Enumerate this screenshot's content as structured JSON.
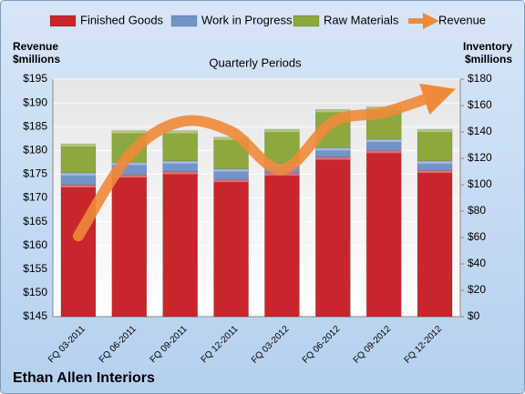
{
  "chart_data": {
    "type": "bar",
    "title": "Quarterly Periods",
    "footer": "Ethan Allen Interiors",
    "y_label": [
      "Revenue",
      "$millions"
    ],
    "y2_label": [
      "Inventory",
      "$millions"
    ],
    "categories": [
      "FQ 03-2011",
      "FQ 06-2011",
      "FQ 09-2011",
      "FQ 12-2011",
      "FQ 03-2012",
      "FQ 06-2012",
      "FQ 09-2012",
      "FQ 12-2012"
    ],
    "stacked": true,
    "grid": true,
    "legend": "top",
    "series": [
      {
        "name": "Finished Goods",
        "color": "#c8252c",
        "axis": "y2",
        "values": [
          100,
          107.5,
          110,
          104,
          109,
          121,
          126,
          111
        ]
      },
      {
        "name": "Work in Progress",
        "color": "#7393c9",
        "axis": "y2",
        "values": [
          9,
          9.5,
          8,
          8,
          7,
          7,
          8.5,
          7
        ]
      },
      {
        "name": "Raw Materials",
        "color": "#8ca83e",
        "axis": "y2",
        "values": [
          22,
          24,
          23,
          24,
          26,
          29,
          24.5,
          24
        ]
      },
      {
        "name": "Revenue",
        "color": "#ef8a3a",
        "type": "line",
        "axis": "y",
        "values": [
          162,
          179,
          186,
          184,
          176,
          186,
          188,
          191.5
        ]
      }
    ],
    "ylim": [
      145,
      195
    ],
    "yticks": [
      {
        "value": 145,
        "label": "$145"
      },
      {
        "value": 150,
        "label": "$150"
      },
      {
        "value": 155,
        "label": "$155"
      },
      {
        "value": 160,
        "label": "$160"
      },
      {
        "value": 165,
        "label": "$165"
      },
      {
        "value": 170,
        "label": "$170"
      },
      {
        "value": 175,
        "label": "$175"
      },
      {
        "value": 180,
        "label": "$180"
      },
      {
        "value": 185,
        "label": "$185"
      },
      {
        "value": 190,
        "label": "$190"
      },
      {
        "value": 195,
        "label": "$195"
      }
    ],
    "y2lim": [
      0,
      180
    ],
    "y2ticks": [
      {
        "value": 0,
        "label": "$0"
      },
      {
        "value": 20,
        "label": "$20"
      },
      {
        "value": 40,
        "label": "$40"
      },
      {
        "value": 60,
        "label": "$60"
      },
      {
        "value": 80,
        "label": "$80"
      },
      {
        "value": 100,
        "label": "$100"
      },
      {
        "value": 120,
        "label": "$120"
      },
      {
        "value": 140,
        "label": "$140"
      },
      {
        "value": 160,
        "label": "$160"
      },
      {
        "value": 180,
        "label": "$180"
      }
    ]
  }
}
